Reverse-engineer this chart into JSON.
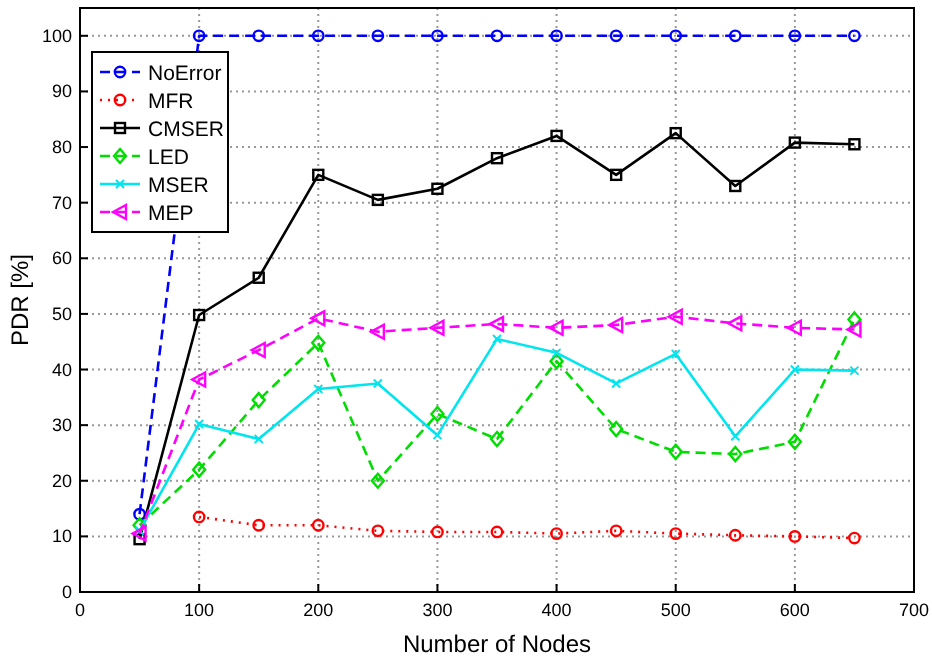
{
  "chart_data": {
    "type": "line",
    "xlabel": "Number of Nodes",
    "ylabel": "PDR [%]",
    "x": [
      50,
      100,
      150,
      200,
      250,
      300,
      350,
      400,
      450,
      500,
      550,
      600,
      650
    ],
    "xlim": [
      0,
      700
    ],
    "xticks": [
      0,
      100,
      200,
      300,
      400,
      500,
      600,
      700
    ],
    "ylim": [
      0,
      105
    ],
    "yticks": [
      0,
      10,
      20,
      30,
      40,
      50,
      60,
      70,
      80,
      90,
      100
    ],
    "grid": true,
    "legend": "top left",
    "series": [
      {
        "name": "NoError",
        "color": "#0000ff",
        "line_style": "dashed",
        "marker": "circle",
        "values": [
          14,
          100,
          100,
          100,
          100,
          100,
          100,
          100,
          100,
          100,
          100,
          100,
          100
        ]
      },
      {
        "name": "MFR",
        "color": "#ff0000",
        "line_style": "dotted",
        "marker": "circle",
        "values": [
          null,
          13.5,
          12,
          12,
          11,
          10.8,
          10.8,
          10.5,
          11,
          10.5,
          10.2,
          10,
          9.7
        ]
      },
      {
        "name": "CMSER",
        "color": "#000000",
        "line_style": "solid",
        "marker": "square",
        "values": [
          9.5,
          49.8,
          56.5,
          75,
          70.5,
          72.5,
          78,
          82,
          75,
          82.5,
          73,
          80.8,
          80.5
        ]
      },
      {
        "name": "LED",
        "color": "#00dd00",
        "line_style": "dashed",
        "marker": "diamond",
        "values": [
          12,
          22,
          34.5,
          44.8,
          20,
          32,
          27.5,
          41.5,
          29.3,
          25.2,
          24.8,
          27,
          49
        ]
      },
      {
        "name": "MSER",
        "color": "#00e5ee",
        "line_style": "solid",
        "marker": "cross",
        "values": [
          11,
          30.2,
          27.5,
          36.5,
          37.5,
          28.2,
          45.5,
          43,
          37.5,
          42.8,
          28,
          40,
          39.8
        ]
      },
      {
        "name": "MEP",
        "color": "#ff00ff",
        "line_style": "dashed",
        "marker": "triangle",
        "values": [
          10.5,
          38.2,
          43.5,
          49.2,
          46.8,
          47.5,
          48.2,
          47.5,
          48,
          49.5,
          48.3,
          47.5,
          47.2
        ]
      }
    ]
  }
}
